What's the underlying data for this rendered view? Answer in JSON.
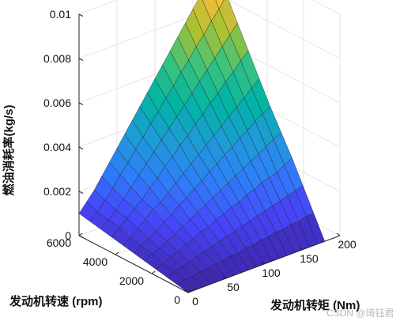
{
  "chart_data": {
    "type": "surface",
    "xlabel": "发动机转矩 (Nm)",
    "ylabel": "发动机转速 (rpm)",
    "zlabel": "燃油消耗率(kg/s)",
    "xlim": [
      0,
      200
    ],
    "ylim": [
      0,
      6000
    ],
    "zlim": [
      0,
      0.01
    ],
    "x_ticks": [
      "0",
      "50",
      "100",
      "150",
      "200"
    ],
    "y_ticks": [
      "0",
      "2000",
      "4000",
      "6000"
    ],
    "z_ticks": [
      "0",
      "0.002",
      "0.004",
      "0.006",
      "0.008",
      "0.01"
    ],
    "torque_grid": [
      0,
      10,
      20,
      30,
      40,
      50,
      60,
      70,
      80,
      90,
      100,
      110,
      120,
      130,
      140,
      150,
      160,
      170,
      180
    ],
    "speed_grid": [
      0,
      600,
      1200,
      1800,
      2400,
      3000,
      3600,
      4200,
      4800,
      5400,
      6000
    ],
    "fuel_rate": [
      [
        0.0,
        0.0,
        0.0,
        0.0,
        0.0,
        0.0,
        0.0,
        0.0,
        0.0,
        0.0,
        0.0,
        0.0,
        0.0,
        0.0,
        0.0,
        0.0,
        0.0,
        0.0,
        0.0
      ],
      [
        0.0001,
        0.0002,
        0.0002,
        0.0003,
        0.0003,
        0.0004,
        0.0004,
        0.0005,
        0.0005,
        0.0006,
        0.0006,
        0.0007,
        0.0007,
        0.0008,
        0.0008,
        0.0009,
        0.0009,
        0.001,
        0.001
      ],
      [
        0.0002,
        0.0003,
        0.0004,
        0.0005,
        0.0006,
        0.0007,
        0.0008,
        0.0009,
        0.001,
        0.0011,
        0.0012,
        0.0013,
        0.0014,
        0.0015,
        0.0016,
        0.0017,
        0.0018,
        0.0019,
        0.002
      ],
      [
        0.0003,
        0.0004,
        0.0006,
        0.0007,
        0.0009,
        0.001,
        0.0012,
        0.0013,
        0.0015,
        0.0016,
        0.0018,
        0.0019,
        0.0021,
        0.0022,
        0.0024,
        0.0025,
        0.0026,
        0.0028,
        0.003
      ],
      [
        0.0004,
        0.0006,
        0.0007,
        0.0009,
        0.0011,
        0.0013,
        0.0015,
        0.0017,
        0.0019,
        0.0021,
        0.0023,
        0.0025,
        0.0027,
        0.0029,
        0.0031,
        0.0033,
        0.0035,
        0.0037,
        0.0039
      ],
      [
        0.0005,
        0.0007,
        0.0009,
        0.0011,
        0.0014,
        0.0016,
        0.0019,
        0.0021,
        0.0024,
        0.0026,
        0.0029,
        0.0031,
        0.0034,
        0.0036,
        0.0039,
        0.0041,
        0.0044,
        0.0046,
        0.0048
      ],
      [
        0.0006,
        0.0008,
        0.0011,
        0.0014,
        0.0017,
        0.0019,
        0.0022,
        0.0025,
        0.0028,
        0.0031,
        0.0034,
        0.0037,
        0.004,
        0.0043,
        0.0046,
        0.0049,
        0.0052,
        0.0055,
        0.0058
      ],
      [
        0.0007,
        0.001,
        0.0013,
        0.0016,
        0.0019,
        0.0023,
        0.0026,
        0.003,
        0.0033,
        0.0037,
        0.004,
        0.0044,
        0.0047,
        0.0051,
        0.0054,
        0.0058,
        0.0061,
        0.0065,
        0.0068
      ],
      [
        0.0008,
        0.0011,
        0.0014,
        0.0018,
        0.0022,
        0.0026,
        0.003,
        0.0034,
        0.0038,
        0.0042,
        0.0046,
        0.005,
        0.0054,
        0.0058,
        0.0062,
        0.0066,
        0.007,
        0.0074,
        0.0078
      ],
      [
        0.0009,
        0.0012,
        0.0016,
        0.002,
        0.0025,
        0.0029,
        0.0034,
        0.0038,
        0.0043,
        0.0047,
        0.0052,
        0.0056,
        0.0061,
        0.0065,
        0.007,
        0.0074,
        0.0079,
        0.0083,
        0.0088
      ],
      [
        0.001,
        0.0014,
        0.0018,
        0.0023,
        0.0028,
        0.0033,
        0.0038,
        0.0043,
        0.0048,
        0.0053,
        0.0058,
        0.0063,
        0.0068,
        0.0073,
        0.0078,
        0.0083,
        0.0088,
        0.0094,
        0.0101
      ]
    ],
    "colormap": [
      "#3e26a8",
      "#4743f8",
      "#2f7dfa",
      "#1e9bd6",
      "#00b4a5",
      "#3ac27e",
      "#a8c133",
      "#f4bb39",
      "#fada26"
    ],
    "grid": true
  },
  "watermark": "CSDN @琦钰君"
}
